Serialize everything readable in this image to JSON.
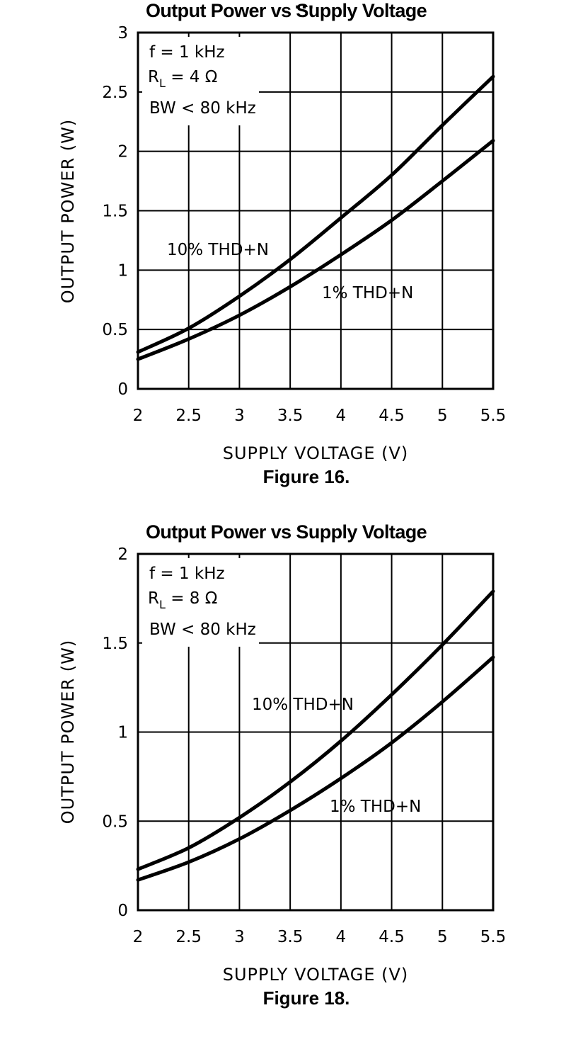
{
  "header_clip": "…",
  "charts": [
    {
      "id": "fig16",
      "title": "Output Power vs Supply Voltage",
      "caption": "Figure 16.",
      "conditions": [
        "f = 1 kHz",
        "R",
        "L",
        " = 4 Ω",
        "BW < 80 kHz"
      ],
      "curve_labels": [
        "10% THD+N",
        "1% THD+N"
      ]
    },
    {
      "id": "fig18",
      "title": "Output Power vs Supply Voltage",
      "caption": "Figure 18.",
      "conditions": [
        "f = 1 kHz",
        "R",
        "L",
        " = 8 Ω",
        "BW < 80 kHz"
      ],
      "curve_labels": [
        "10% THD+N",
        "1% THD+N"
      ]
    }
  ],
  "chart_data": [
    {
      "type": "line",
      "title": "Output Power vs Supply Voltage",
      "xlabel": "SUPPLY VOLTAGE (V)",
      "ylabel": "OUTPUT POWER (W)",
      "xlim": [
        2,
        5.5
      ],
      "ylim": [
        0,
        3
      ],
      "xticks": [
        "2",
        "2.5",
        "3",
        "3.5",
        "4",
        "4.5",
        "5",
        "5.5"
      ],
      "yticks": [
        "0",
        "0.5",
        "1",
        "1.5",
        "2",
        "2.5",
        "3"
      ],
      "grid": true,
      "line_color": "#000000",
      "x": [
        2.0,
        2.5,
        3.0,
        3.5,
        4.0,
        4.5,
        5.0,
        5.5
      ],
      "series": [
        {
          "name": "10% THD+N",
          "values": [
            0.31,
            0.51,
            0.78,
            1.09,
            1.44,
            1.8,
            2.22,
            2.63
          ]
        },
        {
          "name": "1% THD+N",
          "values": [
            0.25,
            0.42,
            0.62,
            0.86,
            1.13,
            1.42,
            1.75,
            2.09
          ]
        }
      ]
    },
    {
      "type": "line",
      "title": "Output Power vs Supply Voltage",
      "xlabel": "SUPPLY VOLTAGE (V)",
      "ylabel": "OUTPUT POWER (W)",
      "xlim": [
        2,
        5.5
      ],
      "ylim": [
        0,
        2
      ],
      "xticks": [
        "2",
        "2.5",
        "3",
        "3.5",
        "4",
        "4.5",
        "5",
        "5.5"
      ],
      "yticks": [
        "0",
        "0.5",
        "1",
        "1.5",
        "2"
      ],
      "grid": true,
      "line_color": "#000000",
      "x": [
        2.0,
        2.5,
        3.0,
        3.5,
        4.0,
        4.5,
        5.0,
        5.5
      ],
      "series": [
        {
          "name": "10% THD+N",
          "values": [
            0.23,
            0.35,
            0.52,
            0.72,
            0.95,
            1.21,
            1.49,
            1.79
          ]
        },
        {
          "name": "1% THD+N",
          "values": [
            0.17,
            0.27,
            0.4,
            0.56,
            0.74,
            0.94,
            1.17,
            1.42
          ]
        }
      ]
    }
  ]
}
